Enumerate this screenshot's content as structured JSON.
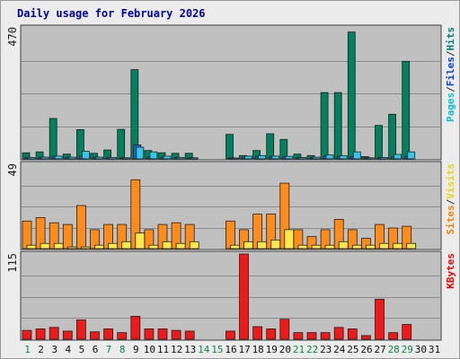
{
  "chart_data": {
    "type": "bar",
    "title": "Daily usage for February 2026",
    "days": [
      "1",
      "2",
      "3",
      "4",
      "5",
      "6",
      "7",
      "8",
      "9",
      "10",
      "11",
      "12",
      "13",
      "14",
      "15",
      "16",
      "17",
      "18",
      "19",
      "20",
      "21",
      "22",
      "23",
      "24",
      "25",
      "26",
      "27",
      "28",
      "29",
      "30",
      "31"
    ],
    "weekend_days": [
      "1",
      "7",
      "8",
      "14",
      "15",
      "21",
      "22",
      "28",
      "29"
    ],
    "panels": [
      {
        "id": "hits-files-pages",
        "ymax_label": "470",
        "ymax": 470,
        "legend": [
          "Pages",
          "/",
          "Files",
          "/",
          "Hits"
        ],
        "legend_colors": [
          "#00c0e0",
          "#303030",
          "#0040ff",
          "#303030",
          "#008080"
        ],
        "series": [
          {
            "name": "Hits",
            "color": "#00805c",
            "values": [
              22,
              25,
              145,
              17,
              105,
              20,
              32,
              106,
              320,
              30,
              22,
              20,
              20,
              0,
              0,
              88,
              12,
              30,
              90,
              70,
              17,
              12,
              238,
              238,
              455,
              8,
              120,
              160,
              350,
              0,
              0
            ]
          },
          {
            "name": "Files",
            "color": "#2f5bd8",
            "values": [
              5,
              6,
              10,
              5,
              10,
              6,
              5,
              4,
              50,
              6,
              6,
              5,
              4,
              0,
              0,
              3,
              6,
              8,
              7,
              8,
              5,
              4,
              10,
              9,
              8,
              4,
              5,
              7,
              9,
              0,
              0
            ]
          },
          {
            "name": "Pages",
            "color": "#2ec9e8",
            "values": [
              5,
              6,
              10,
              6,
              27,
              6,
              5,
              4,
              42,
              25,
              10,
              5,
              4,
              0,
              0,
              3,
              10,
              12,
              10,
              9,
              5,
              6,
              14,
              11,
              25,
              4,
              5,
              16,
              25,
              0,
              0
            ]
          }
        ]
      },
      {
        "id": "visits-sites",
        "ymax_label": "49",
        "ymax": 49,
        "legend": [
          "Sites",
          "/",
          "Visits"
        ],
        "legend_colors": [
          "#ff8000",
          "#303030",
          "#e8d800"
        ],
        "series": [
          {
            "name": "Sites",
            "color": "#ff8c1a",
            "values": [
              16,
              18,
              15,
              14,
              25,
              11,
              14,
              14,
              40,
              11,
              14,
              15,
              14,
              0,
              0,
              16,
              11,
              20,
              20,
              38,
              11,
              7,
              11,
              17,
              11,
              6,
              14,
              12,
              13,
              0,
              0
            ]
          },
          {
            "name": "Visits",
            "color": "#ffe94a",
            "values": [
              2,
              3,
              3,
              1,
              1,
              2,
              3,
              4,
              9,
              2,
              4,
              3,
              4,
              0,
              0,
              2,
              4,
              4,
              5,
              11,
              2,
              2,
              2,
              4,
              2,
              2,
              3,
              3,
              3,
              0,
              0
            ]
          }
        ]
      },
      {
        "id": "kbytes",
        "ymax_label": "115",
        "ymax": 115,
        "legend": [
          "KBytes"
        ],
        "legend_colors": [
          "#ff0000"
        ],
        "series": [
          {
            "name": "KBytes",
            "color": "#f01818",
            "values": [
              12,
              14,
              16,
              11,
              26,
              10,
              14,
              9,
              31,
              14,
              14,
              12,
              11,
              0,
              0,
              11,
              115,
              17,
              14,
              27,
              9,
              9,
              9,
              16,
              14,
              5,
              54,
              9,
              20,
              0,
              0
            ]
          }
        ]
      }
    ]
  }
}
